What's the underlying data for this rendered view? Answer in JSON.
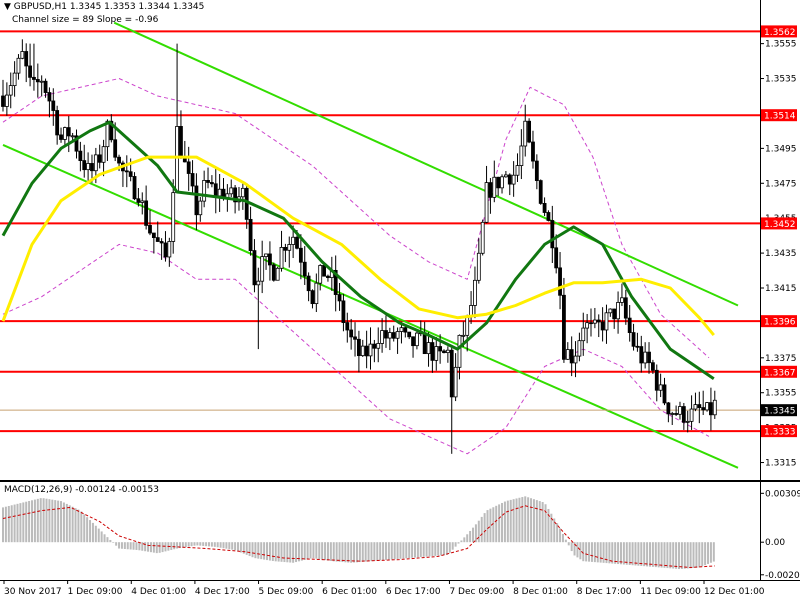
{
  "header": {
    "symbol_line": "GBPUSD,H1  1.3345 1.3353 1.3344 1.3345",
    "channel_line": "Channel size = 89 Slope = -0.96",
    "macd_line": "MACD(12,26,9) -0.00124 -0.00153"
  },
  "colors": {
    "candle": "#000000",
    "level": "#ff0000",
    "channel": "#33dd00",
    "ma_fast": "#117711",
    "ma_slow": "#ffee00",
    "envelope": "#cc44cc",
    "macd_hist": "#bbbbbb",
    "macd_signal": "#cc0000",
    "bid_line": "#c8a070",
    "current_tag_bg": "#000000"
  },
  "chart_data": [
    {
      "type": "candlestick",
      "title": "GBPUSD,H1",
      "ylim": [
        1.3305,
        1.358
      ],
      "y_ticks": [
        "1.3555",
        "1.3535",
        "1.3515",
        "1.3495",
        "1.3475",
        "1.3455",
        "1.3435",
        "1.3415",
        "1.3395",
        "1.3375",
        "1.3355",
        "1.3335",
        "1.3315"
      ],
      "x_ticks": [
        "30 Nov 2017",
        "1 Dec 09:00",
        "4 Dec 01:00",
        "4 Dec 17:00",
        "5 Dec 09:00",
        "6 Dec 01:00",
        "6 Dec 17:00",
        "7 Dec 09:00",
        "8 Dec 01:00",
        "8 Dec 17:00",
        "11 Dec 09:00",
        "12 Dec 01:00"
      ],
      "levels": [
        "1.3562",
        "1.3514",
        "1.3452",
        "1.3396",
        "1.3367",
        "1.3333"
      ],
      "current_price": "1.3345",
      "close_path": [
        [
          0,
          1.3525
        ],
        [
          10,
          1.3535
        ],
        [
          20,
          1.3548
        ],
        [
          30,
          1.3528
        ],
        [
          40,
          1.3535
        ],
        [
          50,
          1.352
        ],
        [
          60,
          1.35
        ],
        [
          70,
          1.3505
        ],
        [
          80,
          1.349
        ],
        [
          90,
          1.348
        ],
        [
          100,
          1.349
        ],
        [
          110,
          1.351
        ],
        [
          120,
          1.3485
        ],
        [
          130,
          1.3475
        ],
        [
          140,
          1.347
        ],
        [
          150,
          1.345
        ],
        [
          160,
          1.344
        ],
        [
          170,
          1.343
        ],
        [
          180,
          1.3505
        ],
        [
          190,
          1.348
        ],
        [
          200,
          1.346
        ],
        [
          210,
          1.3475
        ],
        [
          220,
          1.347
        ],
        [
          230,
          1.347
        ],
        [
          240,
          1.3465
        ],
        [
          250,
          1.347
        ],
        [
          260,
          1.342
        ],
        [
          270,
          1.343
        ],
        [
          280,
          1.3425
        ],
        [
          290,
          1.344
        ],
        [
          300,
          1.3445
        ],
        [
          310,
          1.343
        ],
        [
          320,
          1.341
        ],
        [
          330,
          1.3425
        ],
        [
          340,
          1.342
        ],
        [
          350,
          1.34
        ],
        [
          360,
          1.3385
        ],
        [
          370,
          1.3375
        ],
        [
          380,
          1.338
        ],
        [
          390,
          1.339
        ],
        [
          400,
          1.3385
        ],
        [
          410,
          1.339
        ],
        [
          420,
          1.3382
        ],
        [
          430,
          1.3385
        ],
        [
          440,
          1.338
        ],
        [
          450,
          1.3375
        ],
        [
          460,
          1.3378
        ],
        [
          465,
          1.335
        ],
        [
          470,
          1.338
        ],
        [
          480,
          1.3395
        ],
        [
          490,
          1.342
        ],
        [
          500,
          1.347
        ],
        [
          510,
          1.3475
        ],
        [
          520,
          1.348
        ],
        [
          530,
          1.348
        ],
        [
          540,
          1.3505
        ],
        [
          550,
          1.348
        ],
        [
          560,
          1.346
        ],
        [
          570,
          1.344
        ],
        [
          575,
          1.342
        ],
        [
          580,
          1.338
        ],
        [
          590,
          1.3375
        ],
        [
          600,
          1.3395
        ],
        [
          610,
          1.339
        ],
        [
          620,
          1.3395
        ],
        [
          630,
          1.34
        ],
        [
          640,
          1.3405
        ],
        [
          650,
          1.3385
        ],
        [
          660,
          1.3375
        ],
        [
          670,
          1.337
        ],
        [
          680,
          1.3355
        ],
        [
          690,
          1.3345
        ],
        [
          700,
          1.3343
        ],
        [
          710,
          1.3342
        ],
        [
          720,
          1.3345
        ],
        [
          730,
          1.3343
        ],
        [
          736,
          1.3348
        ]
      ],
      "series": [
        {
          "name": "",
          "key": "ma_fast",
          "points": [
            [
              0,
              1.3445
            ],
            [
              30,
              1.3475
            ],
            [
              60,
              1.3495
            ],
            [
              90,
              1.3505
            ],
            [
              110,
              1.351
            ],
            [
              130,
              1.35
            ],
            [
              160,
              1.3485
            ],
            [
              180,
              1.347
            ],
            [
              210,
              1.3468
            ],
            [
              250,
              1.3465
            ],
            [
              290,
              1.3455
            ],
            [
              330,
              1.343
            ],
            [
              370,
              1.341
            ],
            [
              410,
              1.3395
            ],
            [
              440,
              1.3388
            ],
            [
              470,
              1.338
            ],
            [
              500,
              1.3395
            ],
            [
              530,
              1.342
            ],
            [
              560,
              1.344
            ],
            [
              590,
              1.345
            ],
            [
              620,
              1.344
            ],
            [
              650,
              1.341
            ],
            [
              690,
              1.338
            ],
            [
              735,
              1.3363
            ]
          ]
        },
        {
          "name": "",
          "key": "ma_slow",
          "points": [
            [
              0,
              1.3396
            ],
            [
              30,
              1.344
            ],
            [
              60,
              1.3465
            ],
            [
              100,
              1.348
            ],
            [
              150,
              1.349
            ],
            [
              200,
              1.349
            ],
            [
              250,
              1.3475
            ],
            [
              300,
              1.3455
            ],
            [
              350,
              1.344
            ],
            [
              390,
              1.342
            ],
            [
              430,
              1.3403
            ],
            [
              470,
              1.3398
            ],
            [
              500,
              1.34
            ],
            [
              530,
              1.3405
            ],
            [
              560,
              1.3412
            ],
            [
              590,
              1.3418
            ],
            [
              620,
              1.3418
            ],
            [
              660,
              1.342
            ],
            [
              690,
              1.3415
            ],
            [
              720,
              1.3398
            ],
            [
              735,
              1.3388
            ]
          ]
        },
        {
          "name": "",
          "key": "channel",
          "points": [
            [
              115,
              1.3567
            ],
            [
              760,
              1.3405
            ]
          ]
        },
        {
          "name": "",
          "key": "channel",
          "points": [
            [
              0,
              1.3497
            ],
            [
              760,
              1.3312
            ]
          ]
        },
        {
          "name": "",
          "key": "envelope",
          "points": [
            [
              0,
              1.351
            ],
            [
              40,
              1.3525
            ],
            [
              80,
              1.353
            ],
            [
              120,
              1.3535
            ],
            [
              160,
              1.3525
            ],
            [
              200,
              1.352
            ],
            [
              240,
              1.3515
            ],
            [
              280,
              1.35
            ],
            [
              320,
              1.3485
            ],
            [
              360,
              1.3465
            ],
            [
              400,
              1.3445
            ],
            [
              440,
              1.343
            ],
            [
              480,
              1.342
            ],
            [
              520,
              1.35
            ],
            [
              545,
              1.353
            ],
            [
              580,
              1.352
            ],
            [
              610,
              1.349
            ],
            [
              640,
              1.344
            ],
            [
              680,
              1.34
            ],
            [
              730,
              1.3375
            ]
          ]
        },
        {
          "name": "",
          "key": "envelope",
          "points": [
            [
              0,
              1.34
            ],
            [
              40,
              1.341
            ],
            [
              80,
              1.3425
            ],
            [
              120,
              1.344
            ],
            [
              160,
              1.3435
            ],
            [
              200,
              1.342
            ],
            [
              240,
              1.342
            ],
            [
              280,
              1.34
            ],
            [
              320,
              1.338
            ],
            [
              360,
              1.336
            ],
            [
              400,
              1.334
            ],
            [
              440,
              1.333
            ],
            [
              480,
              1.332
            ],
            [
              520,
              1.3335
            ],
            [
              560,
              1.337
            ],
            [
              600,
              1.338
            ],
            [
              640,
              1.337
            ],
            [
              680,
              1.3345
            ],
            [
              730,
              1.333
            ]
          ]
        }
      ]
    },
    {
      "type": "bar",
      "title": "MACD(12,26,9)",
      "ylim": [
        -0.0022,
        0.0033
      ],
      "y_ticks": [
        "0.00309",
        "0.00",
        "-0.00206"
      ],
      "histogram": [
        [
          0,
          0.0022
        ],
        [
          40,
          0.0028
        ],
        [
          60,
          0.0026
        ],
        [
          80,
          0.002
        ],
        [
          100,
          0.0008
        ],
        [
          120,
          -0.0004
        ],
        [
          140,
          -0.0005
        ],
        [
          160,
          -0.0007
        ],
        [
          180,
          -0.0004
        ],
        [
          200,
          -0.0002
        ],
        [
          220,
          -0.0003
        ],
        [
          240,
          -0.0005
        ],
        [
          260,
          -0.001
        ],
        [
          280,
          -0.0012
        ],
        [
          300,
          -0.0013
        ],
        [
          320,
          -0.001
        ],
        [
          340,
          -0.0012
        ],
        [
          360,
          -0.0013
        ],
        [
          380,
          -0.0012
        ],
        [
          400,
          -0.0011
        ],
        [
          420,
          -0.001
        ],
        [
          440,
          -0.0009
        ],
        [
          460,
          -0.0008
        ],
        [
          480,
          0.0005
        ],
        [
          490,
          0.0012
        ],
        [
          500,
          0.002
        ],
        [
          520,
          0.0026
        ],
        [
          540,
          0.0029
        ],
        [
          560,
          0.0025
        ],
        [
          575,
          0.001
        ],
        [
          590,
          -0.0008
        ],
        [
          600,
          -0.0012
        ],
        [
          620,
          -0.0013
        ],
        [
          640,
          -0.0014
        ],
        [
          660,
          -0.0015
        ],
        [
          680,
          -0.0016
        ],
        [
          700,
          -0.0017
        ],
        [
          720,
          -0.0016
        ],
        [
          736,
          -0.0012
        ]
      ],
      "signal": [
        [
          0,
          0.0015
        ],
        [
          40,
          0.002
        ],
        [
          70,
          0.0022
        ],
        [
          100,
          0.0013
        ],
        [
          120,
          0.0004
        ],
        [
          150,
          -0.0002
        ],
        [
          180,
          -0.0003
        ],
        [
          210,
          -0.0004
        ],
        [
          250,
          -0.0006
        ],
        [
          290,
          -0.001
        ],
        [
          330,
          -0.0011
        ],
        [
          370,
          -0.0012
        ],
        [
          410,
          -0.0011
        ],
        [
          450,
          -0.0009
        ],
        [
          480,
          -0.0004
        ],
        [
          500,
          0.0008
        ],
        [
          520,
          0.0019
        ],
        [
          540,
          0.0023
        ],
        [
          560,
          0.002
        ],
        [
          580,
          0.0006
        ],
        [
          600,
          -0.0007
        ],
        [
          630,
          -0.0012
        ],
        [
          670,
          -0.0014
        ],
        [
          710,
          -0.0016
        ],
        [
          736,
          -0.0015
        ]
      ]
    }
  ]
}
